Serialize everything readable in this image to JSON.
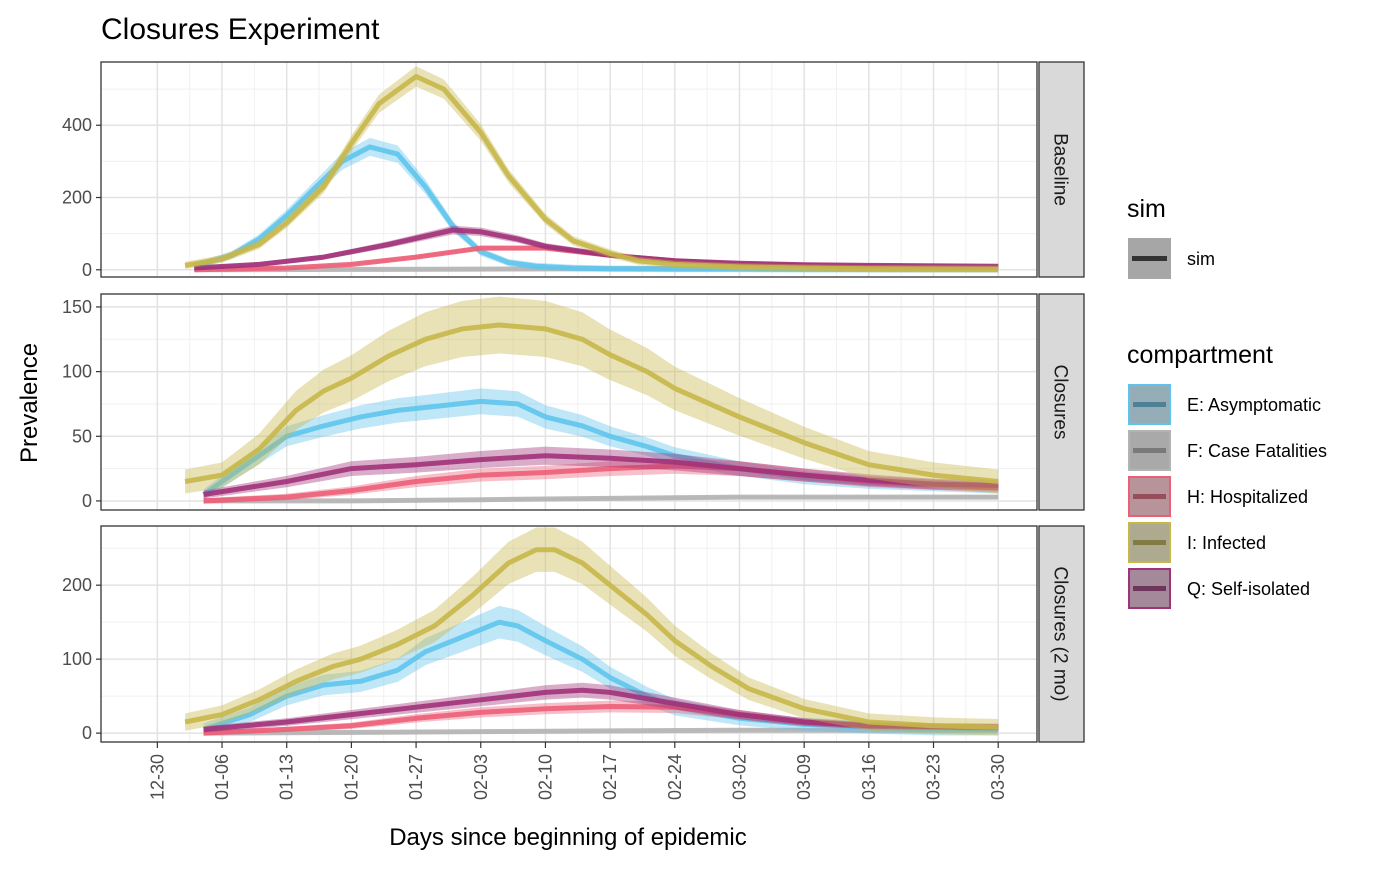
{
  "chart_data": {
    "type": "line",
    "title": "Closures Experiment",
    "xlabel": "Days since beginning of epidemic",
    "ylabel": "Prevalence",
    "x_ticks": [
      "12-30",
      "01-06",
      "01-13",
      "01-20",
      "01-27",
      "02-03",
      "02-10",
      "02-17",
      "02-24",
      "03-02",
      "03-09",
      "03-16",
      "03-23",
      "03-30"
    ],
    "grid": true,
    "legend_placement": "right",
    "legend": {
      "sim": {
        "title": "sim",
        "entries": [
          "sim"
        ]
      },
      "compartment": {
        "title": "compartment"
      }
    },
    "colors": {
      "E": "#5ec4ec",
      "F": "#b3b3b3",
      "H": "#ec5e78",
      "I": "#c7b74a",
      "Q": "#a03279"
    },
    "panels": [
      {
        "strip": "Baseline",
        "ylim": [
          -20,
          575
        ],
        "yticks": [
          0,
          200,
          400
        ],
        "series": [
          {
            "name": "E: Asymptomatic",
            "key": "E",
            "x": [
              "01-03",
              "01-07",
              "01-10",
              "01-13",
              "01-16",
              "01-19",
              "01-22",
              "01-25",
              "01-28",
              "01-31",
              "02-03",
              "02-06",
              "02-09",
              "02-13",
              "02-17",
              "02-24",
              "03-02",
              "03-09",
              "03-16",
              "03-23",
              "03-30"
            ],
            "y": [
              10,
              40,
              85,
              150,
              225,
              300,
              340,
              320,
              230,
              120,
              50,
              20,
              10,
              5,
              3,
              2,
              2,
              1,
              1,
              1,
              1
            ],
            "band": 25
          },
          {
            "name": "F: Case Fatalities",
            "key": "F",
            "x": [
              "01-03",
              "01-20",
              "02-03",
              "02-17",
              "03-02",
              "03-16",
              "03-30"
            ],
            "y": [
              0,
              1,
              2,
              3,
              4,
              4,
              4
            ],
            "band": 1
          },
          {
            "name": "H: Hospitalized",
            "key": "H",
            "x": [
              "01-03",
              "01-13",
              "01-20",
              "01-27",
              "02-03",
              "02-10",
              "02-17",
              "02-24",
              "03-02",
              "03-16",
              "03-30"
            ],
            "y": [
              0,
              5,
              15,
              35,
              60,
              60,
              40,
              25,
              15,
              8,
              6
            ],
            "band": 6
          },
          {
            "name": "I: Infected",
            "key": "I",
            "x": [
              "01-02",
              "01-06",
              "01-10",
              "01-13",
              "01-17",
              "01-20",
              "01-23",
              "01-27",
              "01-30",
              "02-03",
              "02-06",
              "02-10",
              "02-13",
              "02-17",
              "02-20",
              "02-24",
              "03-02",
              "03-09",
              "03-16",
              "03-30"
            ],
            "y": [
              12,
              30,
              70,
              130,
              230,
              350,
              460,
              535,
              500,
              380,
              260,
              140,
              80,
              45,
              25,
              15,
              8,
              5,
              3,
              2
            ],
            "band": 28
          },
          {
            "name": "Q: Self-isolated",
            "key": "Q",
            "x": [
              "01-03",
              "01-10",
              "01-17",
              "01-24",
              "01-31",
              "02-03",
              "02-07",
              "02-10",
              "02-17",
              "02-24",
              "03-02",
              "03-09",
              "03-16",
              "03-30"
            ],
            "y": [
              5,
              15,
              35,
              70,
              110,
              105,
              85,
              65,
              40,
              25,
              18,
              14,
              12,
              10
            ],
            "band": 12
          }
        ]
      },
      {
        "strip": "Closures",
        "ylim": [
          -7,
          160
        ],
        "yticks": [
          0,
          50,
          100,
          150
        ],
        "series": [
          {
            "name": "E: Asymptomatic",
            "key": "E",
            "x": [
              "01-04",
              "01-09",
              "01-13",
              "01-17",
              "01-21",
              "01-25",
              "01-29",
              "02-03",
              "02-07",
              "02-10",
              "02-14",
              "02-17",
              "02-21",
              "02-24",
              "03-02",
              "03-09",
              "03-16",
              "03-23",
              "03-30"
            ],
            "y": [
              5,
              30,
              50,
              58,
              65,
              70,
              73,
              77,
              75,
              65,
              58,
              50,
              42,
              35,
              25,
              18,
              14,
              12,
              10
            ],
            "band": 10
          },
          {
            "name": "F: Case Fatalities",
            "key": "F",
            "x": [
              "01-04",
              "01-20",
              "02-03",
              "02-17",
              "03-02",
              "03-16",
              "03-30"
            ],
            "y": [
              0,
              0,
              1,
              2,
              3,
              3,
              3
            ],
            "band": 1
          },
          {
            "name": "H: Hospitalized",
            "key": "H",
            "x": [
              "01-04",
              "01-13",
              "01-20",
              "01-27",
              "02-03",
              "02-10",
              "02-17",
              "02-24",
              "03-02",
              "03-09",
              "03-16",
              "03-30"
            ],
            "y": [
              0,
              3,
              8,
              15,
              20,
              22,
              25,
              27,
              25,
              20,
              15,
              10
            ],
            "band": 6
          },
          {
            "name": "I: Infected",
            "key": "I",
            "x": [
              "01-02",
              "01-06",
              "01-10",
              "01-14",
              "01-17",
              "01-20",
              "01-24",
              "01-28",
              "02-01",
              "02-05",
              "02-10",
              "02-14",
              "02-17",
              "02-21",
              "02-24",
              "03-02",
              "03-09",
              "03-16",
              "03-23",
              "03-30"
            ],
            "y": [
              15,
              20,
              40,
              70,
              85,
              95,
              112,
              125,
              133,
              136,
              133,
              125,
              113,
              100,
              87,
              65,
              45,
              28,
              20,
              15
            ],
            "band": 22
          },
          {
            "name": "Q: Self-isolated",
            "key": "Q",
            "x": [
              "01-04",
              "01-13",
              "01-20",
              "01-27",
              "02-03",
              "02-10",
              "02-17",
              "02-24",
              "03-02",
              "03-09",
              "03-16",
              "03-23",
              "03-30"
            ],
            "y": [
              5,
              15,
              25,
              28,
              32,
              35,
              33,
              30,
              25,
              20,
              16,
              13,
              12
            ],
            "band": 7
          }
        ]
      },
      {
        "strip": "Closures (2 mo)",
        "ylim": [
          -12,
          280
        ],
        "yticks": [
          0,
          100,
          200
        ],
        "series": [
          {
            "name": "E: Asymptomatic",
            "key": "E",
            "x": [
              "01-04",
              "01-09",
              "01-13",
              "01-17",
              "01-21",
              "01-25",
              "01-28",
              "02-01",
              "02-05",
              "02-07",
              "02-10",
              "02-14",
              "02-17",
              "02-21",
              "02-24",
              "03-02",
              "03-09",
              "03-16",
              "03-23",
              "03-30"
            ],
            "y": [
              5,
              25,
              50,
              65,
              70,
              85,
              110,
              130,
              150,
              145,
              125,
              100,
              75,
              50,
              35,
              20,
              12,
              8,
              5,
              5
            ],
            "band": 22
          },
          {
            "name": "F: Case Fatalities",
            "key": "F",
            "x": [
              "01-04",
              "01-20",
              "02-03",
              "02-17",
              "03-02",
              "03-16",
              "03-30"
            ],
            "y": [
              0,
              1,
              2,
              3,
              4,
              4,
              4
            ],
            "band": 1
          },
          {
            "name": "H: Hospitalized",
            "key": "H",
            "x": [
              "01-04",
              "01-13",
              "01-20",
              "01-27",
              "02-03",
              "02-10",
              "02-17",
              "02-24",
              "03-02",
              "03-09",
              "03-16",
              "03-30"
            ],
            "y": [
              0,
              5,
              10,
              20,
              28,
              33,
              36,
              35,
              25,
              15,
              10,
              8
            ],
            "band": 8
          },
          {
            "name": "I: Infected",
            "key": "I",
            "x": [
              "01-02",
              "01-06",
              "01-10",
              "01-14",
              "01-18",
              "01-21",
              "01-25",
              "01-29",
              "02-02",
              "02-06",
              "02-09",
              "02-11",
              "02-14",
              "02-17",
              "02-21",
              "02-24",
              "02-28",
              "03-03",
              "03-09",
              "03-16",
              "03-23",
              "03-30"
            ],
            "y": [
              15,
              25,
              45,
              70,
              90,
              100,
              120,
              145,
              185,
              230,
              248,
              248,
              230,
              200,
              160,
              125,
              90,
              60,
              33,
              15,
              10,
              8
            ],
            "band": 30
          },
          {
            "name": "Q: Self-isolated",
            "key": "Q",
            "x": [
              "01-04",
              "01-13",
              "01-20",
              "01-27",
              "02-03",
              "02-10",
              "02-14",
              "02-17",
              "02-24",
              "03-02",
              "03-09",
              "03-16",
              "03-30"
            ],
            "y": [
              5,
              15,
              25,
              35,
              45,
              55,
              58,
              55,
              40,
              25,
              15,
              10,
              8
            ],
            "band": 10
          }
        ]
      }
    ]
  }
}
